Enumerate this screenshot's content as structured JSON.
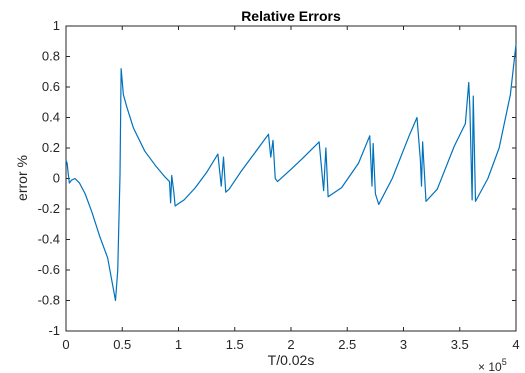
{
  "chart_data": {
    "type": "line",
    "title": "Relative Errors",
    "xlabel": "T/0.02s",
    "ylabel": "error %",
    "x_exponent_label": "× 10",
    "x_exponent_power": "5",
    "xlim": [
      0,
      4
    ],
    "ylim": [
      -1,
      1
    ],
    "x_ticks": [
      0,
      0.5,
      1,
      1.5,
      2,
      2.5,
      3,
      3.5,
      4
    ],
    "x_tick_labels": [
      "0",
      "0.5",
      "1",
      "1.5",
      "2",
      "2.5",
      "3",
      "3.5",
      "4"
    ],
    "y_ticks": [
      -1,
      -0.8,
      -0.6,
      -0.4,
      -0.2,
      0,
      0.2,
      0.4,
      0.6,
      0.8,
      1
    ],
    "y_tick_labels": [
      "-1",
      "-0.8",
      "-0.6",
      "-0.4",
      "-0.2",
      "0",
      "0.2",
      "0.4",
      "0.6",
      "0.8",
      "1"
    ],
    "grid": false,
    "line_color": "#0072bd",
    "series": [
      {
        "x": [
          0,
          0.01,
          0.02,
          0.03,
          0.05,
          0.08,
          0.12,
          0.17,
          0.23,
          0.3,
          0.37,
          0.44,
          0.46,
          0.48,
          0.49,
          0.51,
          0.54,
          0.6,
          0.7,
          0.8,
          0.88,
          0.92,
          0.93,
          0.94,
          0.96,
          0.97,
          0.99,
          1.05,
          1.15,
          1.25,
          1.35,
          1.38,
          1.4,
          1.42,
          1.45,
          1.55,
          1.65,
          1.75,
          1.8,
          1.82,
          1.84,
          1.86,
          1.88,
          2.0,
          2.1,
          2.25,
          2.28,
          2.29,
          2.31,
          2.33,
          2.45,
          2.6,
          2.7,
          2.72,
          2.73,
          2.75,
          2.78,
          2.9,
          3.05,
          3.12,
          3.15,
          3.16,
          3.17,
          3.2,
          3.3,
          3.45,
          3.55,
          3.58,
          3.59,
          3.61,
          3.62,
          3.64,
          3.75,
          3.85,
          3.95,
          4.0
        ],
        "y": [
          0.12,
          0.1,
          0.03,
          -0.03,
          -0.01,
          0.0,
          -0.03,
          -0.1,
          -0.22,
          -0.38,
          -0.52,
          -0.8,
          -0.6,
          0.02,
          0.72,
          0.55,
          0.47,
          0.33,
          0.18,
          0.08,
          0.01,
          -0.02,
          -0.16,
          0.02,
          -0.1,
          -0.18,
          -0.17,
          -0.14,
          -0.06,
          0.04,
          0.16,
          -0.05,
          0.14,
          -0.09,
          -0.07,
          0.04,
          0.14,
          0.24,
          0.29,
          0.14,
          0.25,
          0.0,
          -0.02,
          0.06,
          0.13,
          0.24,
          0.0,
          -0.08,
          0.2,
          -0.12,
          -0.06,
          0.1,
          0.28,
          -0.05,
          0.23,
          -0.1,
          -0.17,
          0.0,
          0.28,
          0.4,
          0.12,
          -0.05,
          0.24,
          -0.15,
          -0.07,
          0.21,
          0.36,
          0.63,
          0.46,
          -0.14,
          0.54,
          -0.15,
          0.0,
          0.2,
          0.55,
          0.88
        ]
      }
    ]
  }
}
